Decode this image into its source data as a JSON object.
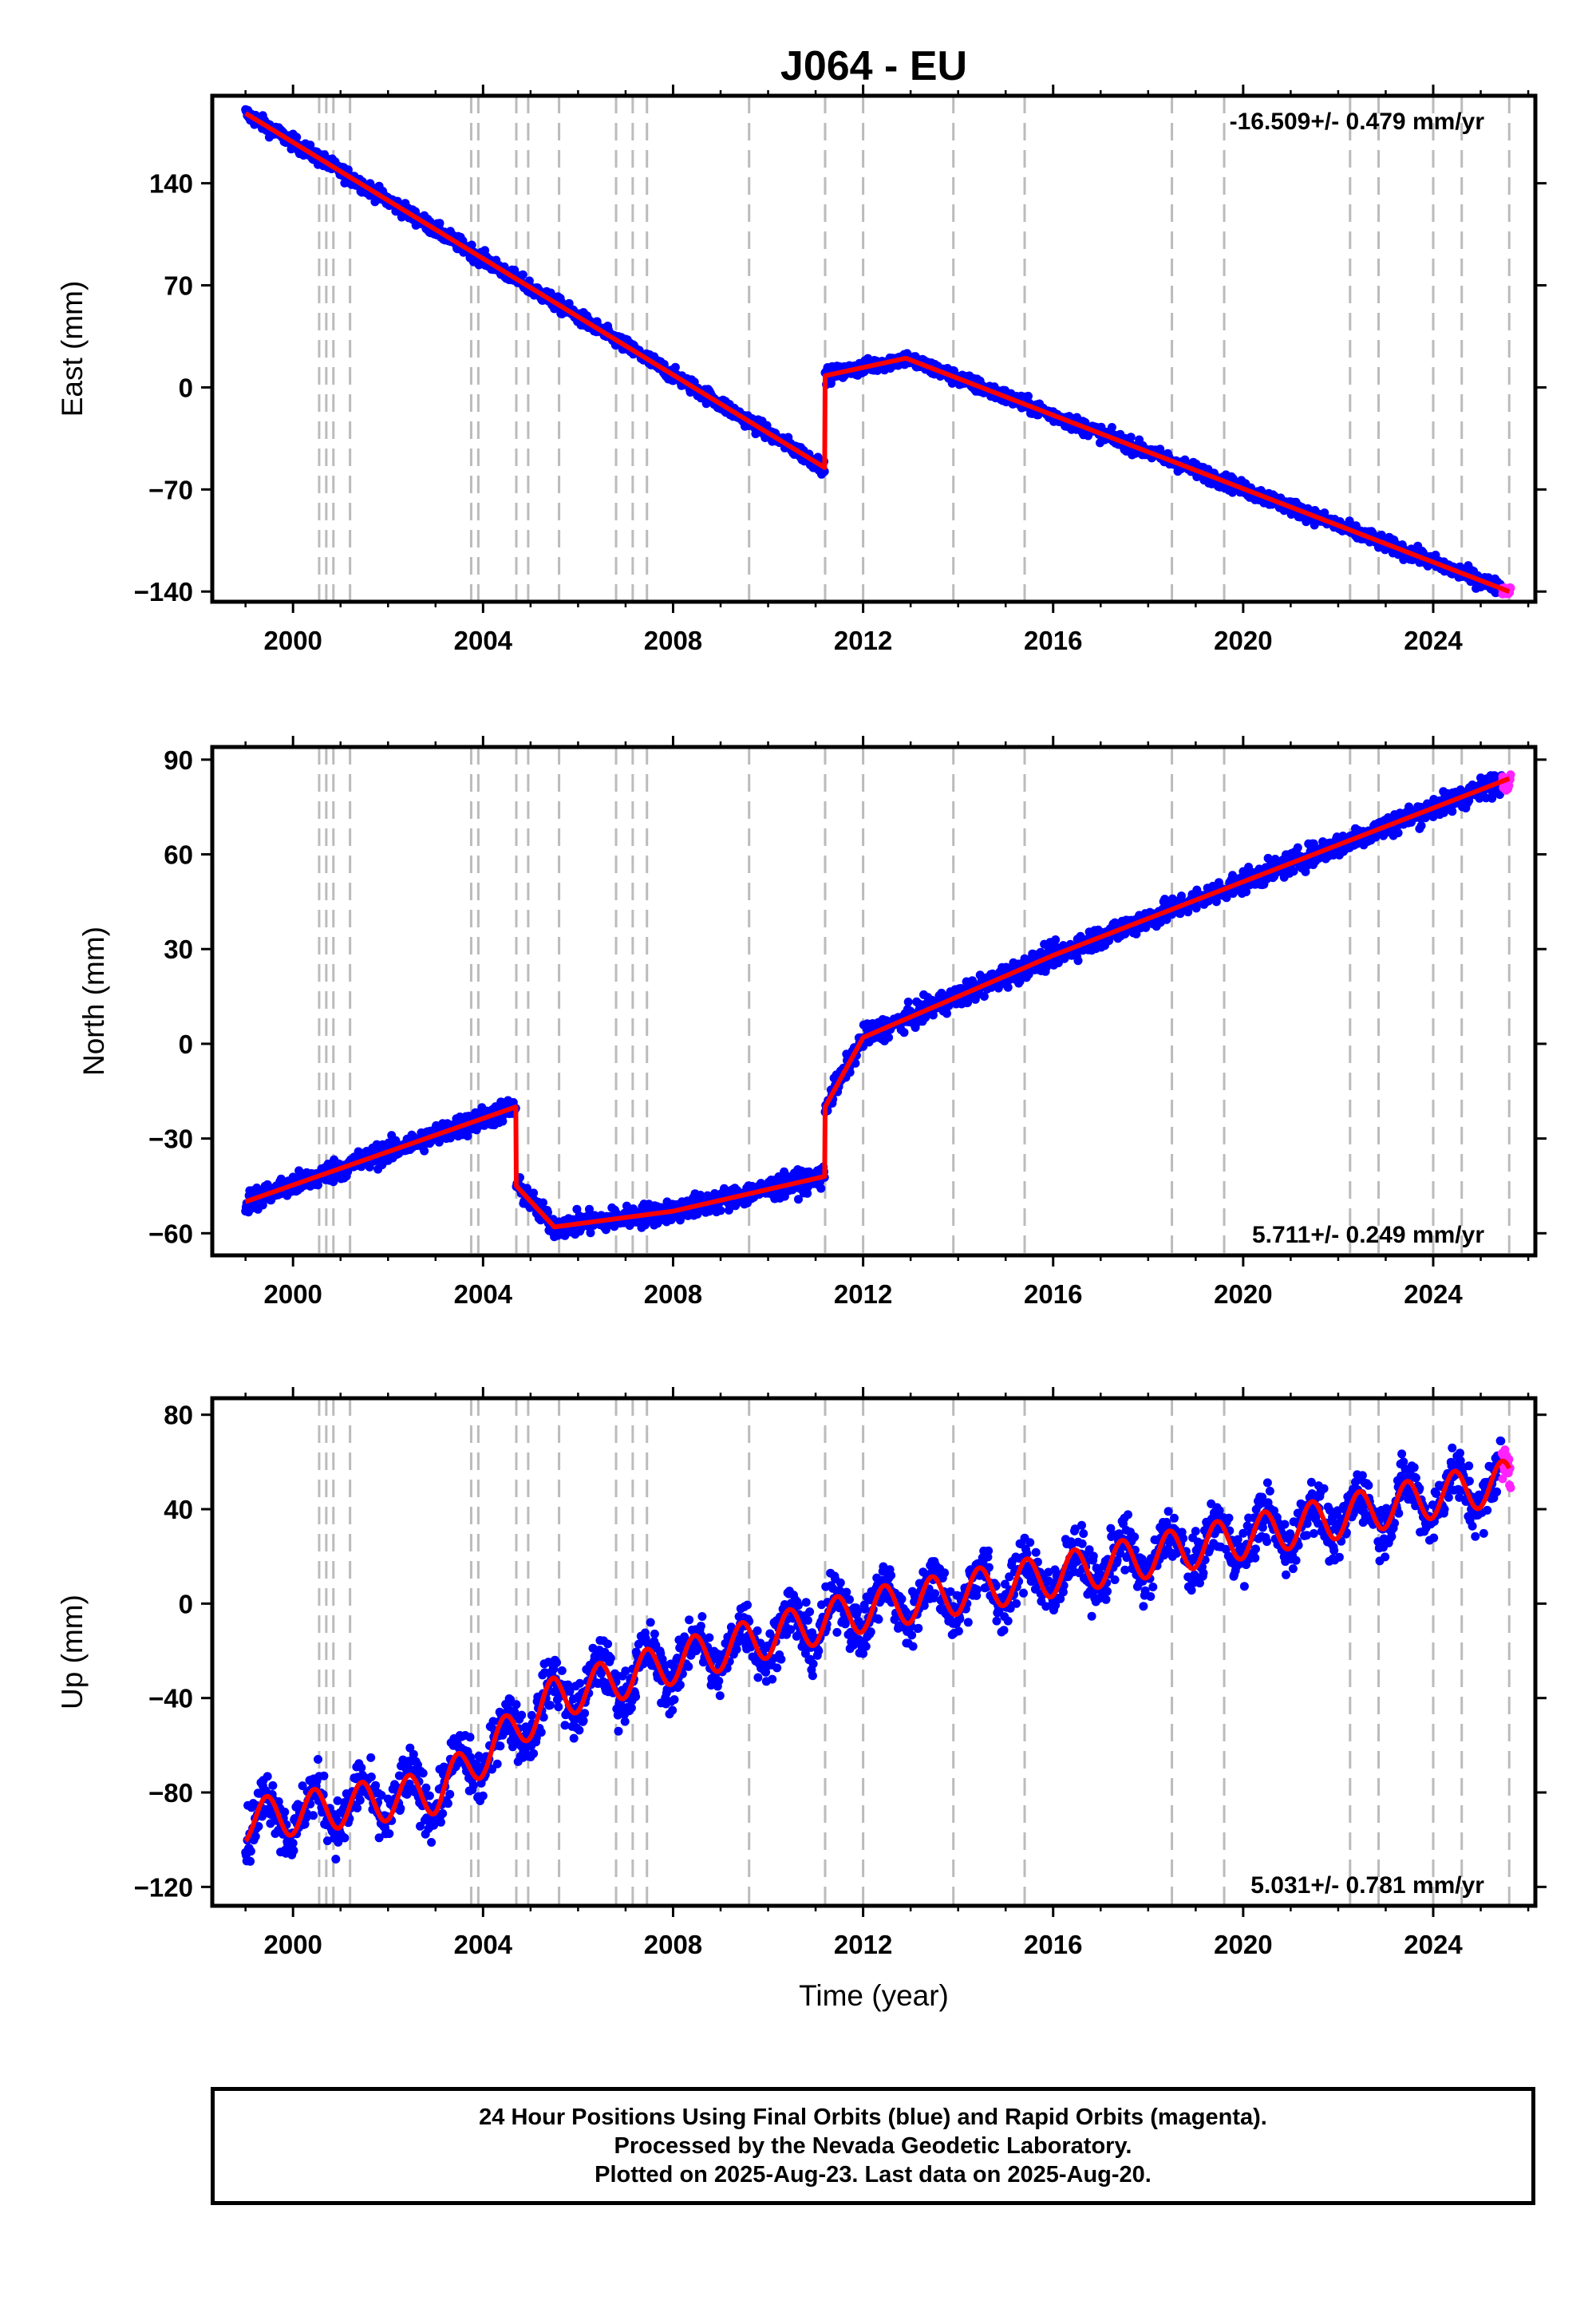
{
  "title": "J064 - EU",
  "colors": {
    "final_orbits": "#0000ff",
    "rapid_orbits": "#ff22ff",
    "model": "#ff0000",
    "breaks": "#bbbbbb"
  },
  "footer": {
    "line1": "24 Hour Positions Using Final Orbits (blue) and Rapid Orbits (magenta).",
    "line2": "Processed by the Nevada Geodetic Laboratory.",
    "line3": "Plotted on 2025-Aug-23. Last data on 2025-Aug-20."
  },
  "chart_data": [
    {
      "type": "scatter",
      "panel": "east",
      "title": "J064 - EU",
      "xlabel": "",
      "ylabel": "East (mm)",
      "xlim": [
        1998.3,
        2026.15
      ],
      "ylim": [
        -147,
        200
      ],
      "x_ticks": [
        2000,
        2004,
        2008,
        2012,
        2016,
        2020,
        2024
      ],
      "x_tick_labels": [
        "2000",
        "2004",
        "2008",
        "2012",
        "2016",
        "2020",
        "2024"
      ],
      "y_ticks": [
        -140,
        -70,
        0,
        70,
        140
      ],
      "y_tick_labels": [
        "−140",
        "−70",
        "0",
        "70",
        "140"
      ],
      "rate_label": "-16.509+/- 0.479 mm/yr",
      "rate_position": "top-right",
      "grid": false,
      "equipment_breaks": [
        2000.55,
        2000.7,
        2000.85,
        2001.2,
        2003.75,
        2003.9,
        2004.7,
        2004.95,
        2005.6,
        2006.8,
        2007.15,
        2007.45,
        2009.6,
        2011.2,
        2012.0,
        2013.9,
        2015.4,
        2018.5,
        2019.6,
        2022.25,
        2022.85,
        2024.0,
        2024.6,
        2025.6
      ],
      "model_knots": [
        [
          1999.0,
          188
        ],
        [
          2011.19,
          -55
        ],
        [
          2011.2,
          8
        ],
        [
          2012.9,
          20
        ],
        [
          2025.6,
          -140
        ]
      ],
      "series": [
        {
          "name": "Final Orbits (blue)",
          "x_range": [
            1999.0,
            2025.45
          ],
          "scatter_mm": 3.5
        },
        {
          "name": "Rapid Orbits (magenta)",
          "x_range": [
            2025.45,
            2025.63
          ],
          "scatter_mm": 2.5
        }
      ]
    },
    {
      "type": "scatter",
      "panel": "north",
      "xlabel": "",
      "ylabel": "North (mm)",
      "xlim": [
        1998.3,
        2026.15
      ],
      "ylim": [
        -67,
        94
      ],
      "x_ticks": [
        2000,
        2004,
        2008,
        2012,
        2016,
        2020,
        2024
      ],
      "x_tick_labels": [
        "2000",
        "2004",
        "2008",
        "2012",
        "2016",
        "2020",
        "2024"
      ],
      "y_ticks": [
        -60,
        -30,
        0,
        30,
        60,
        90
      ],
      "y_tick_labels": [
        "−60",
        "−30",
        "0",
        "30",
        "60",
        "90"
      ],
      "rate_label": "5.711+/- 0.249 mm/yr",
      "rate_position": "bottom-right",
      "grid": false,
      "equipment_breaks": [
        2000.55,
        2000.7,
        2000.85,
        2001.2,
        2003.75,
        2003.9,
        2004.7,
        2004.95,
        2005.6,
        2006.8,
        2007.15,
        2007.45,
        2009.6,
        2011.2,
        2012.0,
        2013.9,
        2015.4,
        2018.5,
        2019.6,
        2022.25,
        2022.85,
        2024.0,
        2024.6,
        2025.6
      ],
      "model_knots": [
        [
          1999.0,
          -50
        ],
        [
          2004.69,
          -20
        ],
        [
          2004.7,
          -45
        ],
        [
          2005.5,
          -58
        ],
        [
          2008.0,
          -53
        ],
        [
          2011.19,
          -42
        ],
        [
          2011.2,
          -20
        ],
        [
          2012.0,
          2
        ],
        [
          2014.0,
          15
        ],
        [
          2016.0,
          28
        ],
        [
          2025.6,
          84
        ]
      ],
      "series": [
        {
          "name": "Final Orbits (blue)",
          "x_range": [
            1999.0,
            2025.45
          ],
          "scatter_mm": 2.5
        },
        {
          "name": "Rapid Orbits (magenta)",
          "x_range": [
            2025.45,
            2025.63
          ],
          "scatter_mm": 2.0
        }
      ]
    },
    {
      "type": "scatter",
      "panel": "up",
      "xlabel": "Time (year)",
      "ylabel": "Up (mm)",
      "xlim": [
        1998.3,
        2026.15
      ],
      "ylim": [
        -128,
        87
      ],
      "x_ticks": [
        2000,
        2004,
        2008,
        2012,
        2016,
        2020,
        2024
      ],
      "x_tick_labels": [
        "2000",
        "2004",
        "2008",
        "2012",
        "2016",
        "2020",
        "2024"
      ],
      "y_ticks": [
        -120,
        -80,
        -40,
        0,
        40,
        80
      ],
      "y_tick_labels": [
        "−120",
        "−80",
        "−40",
        "0",
        "40",
        "80"
      ],
      "rate_label": "5.031+/- 0.781 mm/yr",
      "rate_position": "bottom-right",
      "grid": false,
      "equipment_breaks": [
        2000.55,
        2000.7,
        2000.85,
        2001.2,
        2003.75,
        2003.9,
        2004.7,
        2004.95,
        2005.6,
        2006.8,
        2007.15,
        2007.45,
        2009.6,
        2011.2,
        2012.0,
        2013.9,
        2015.4,
        2018.5,
        2019.6,
        2022.25,
        2022.85,
        2024.0,
        2024.6,
        2025.6
      ],
      "model_knots": [
        [
          1999.0,
          -92
        ],
        [
          2003.0,
          -80
        ],
        [
          2005.5,
          -40
        ],
        [
          2008.0,
          -25
        ],
        [
          2012.0,
          -3
        ],
        [
          2016.0,
          12
        ],
        [
          2020.0,
          28
        ],
        [
          2025.6,
          52
        ]
      ],
      "annual_amplitude_mm": 9,
      "series": [
        {
          "name": "Final Orbits (blue)",
          "x_range": [
            1999.0,
            2025.45
          ],
          "scatter_mm": 8
        },
        {
          "name": "Rapid Orbits (magenta)",
          "x_range": [
            2025.45,
            2025.63
          ],
          "scatter_mm": 7
        }
      ]
    }
  ]
}
